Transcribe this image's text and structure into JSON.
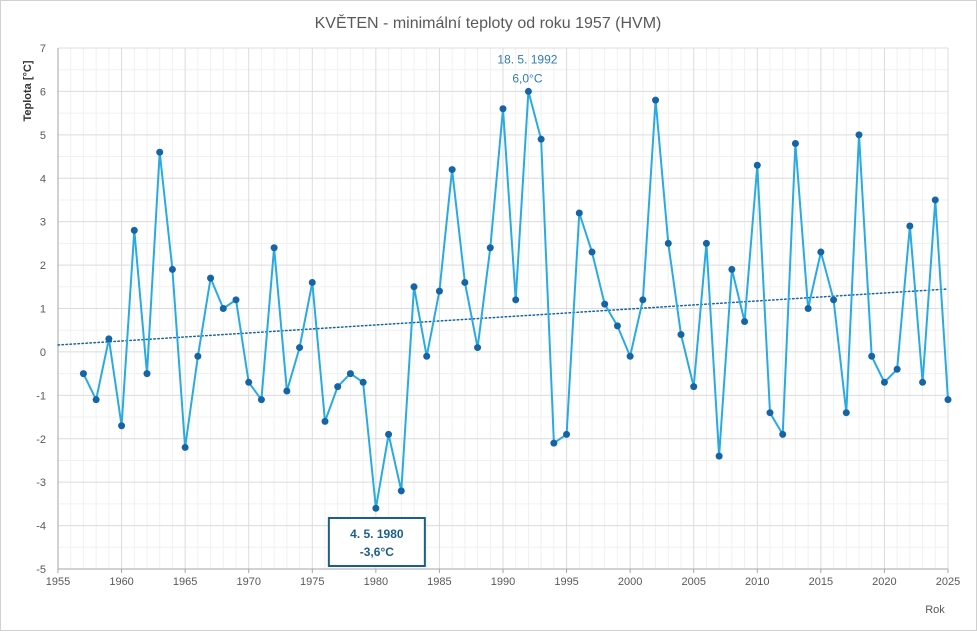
{
  "chart_data": {
    "type": "line",
    "title": "KVĚTEN - minimální teploty od roku 1957 (HVM)",
    "xlabel": "Rok",
    "ylabel": "Teplota [°C]",
    "xlim": [
      1955,
      2025
    ],
    "ylim": [
      -5,
      7
    ],
    "x_ticks": [
      "1955",
      "1960",
      "1965",
      "1970",
      "1975",
      "1980",
      "1985",
      "1990",
      "1995",
      "2000",
      "2005",
      "2010",
      "2015",
      "2020",
      "2025"
    ],
    "y_ticks": [
      "-5",
      "-4",
      "-3",
      "-2",
      "-1",
      "0",
      "1",
      "2",
      "3",
      "4",
      "5",
      "6",
      "7"
    ],
    "grid": true,
    "series": [
      {
        "color": "#29abe2",
        "marker_color": "#1565a6",
        "x": [
          1957,
          1958,
          1959,
          1960,
          1961,
          1962,
          1963,
          1964,
          1965,
          1966,
          1967,
          1968,
          1969,
          1970,
          1971,
          1972,
          1973,
          1974,
          1975,
          1976,
          1977,
          1978,
          1979,
          1980,
          1981,
          1982,
          1983,
          1984,
          1985,
          1986,
          1987,
          1988,
          1989,
          1990,
          1991,
          1992,
          1993,
          1994,
          1995,
          1996,
          1997,
          1998,
          1999,
          2000,
          2001,
          2002,
          2003,
          2004,
          2005,
          2006,
          2007,
          2008,
          2009,
          2010,
          2011,
          2012,
          2013,
          2014,
          2015,
          2016,
          2017,
          2018,
          2019,
          2020,
          2021,
          2022,
          2023,
          2024,
          2025
        ],
        "y": [
          -0.5,
          -1.1,
          0.3,
          -1.7,
          2.8,
          -0.5,
          4.6,
          1.9,
          -2.2,
          -0.1,
          1.7,
          1.0,
          1.2,
          -0.7,
          -1.1,
          2.4,
          -0.9,
          0.1,
          1.6,
          -1.6,
          -0.8,
          -0.5,
          -0.7,
          -3.6,
          -1.9,
          -3.2,
          1.5,
          -0.1,
          1.4,
          4.2,
          1.6,
          0.1,
          2.4,
          5.6,
          1.2,
          6.0,
          4.9,
          -2.1,
          -1.9,
          3.2,
          2.3,
          1.1,
          0.6,
          -0.1,
          1.2,
          5.8,
          2.5,
          0.4,
          -0.8,
          2.5,
          -2.4,
          1.9,
          0.7,
          4.3,
          -1.4,
          -1.9,
          4.8,
          1.0,
          2.3,
          1.2,
          -1.4,
          5.0,
          -0.1,
          -0.7,
          -0.4,
          2.9,
          -0.7,
          3.5,
          -1.1
        ]
      }
    ],
    "trendline": {
      "style": "dotted",
      "color": "#1565a6",
      "x": [
        1955,
        2025
      ],
      "y": [
        0.16,
        1.45
      ]
    },
    "annotations": [
      {
        "id": "max",
        "line1": "18. 5. 1992",
        "line2": "6,0°C",
        "color": "#2e7db5",
        "boxed": false,
        "x": 1992,
        "y": 6.0
      },
      {
        "id": "min",
        "line1": "4. 5. 1980",
        "line2": "-3,6°C",
        "color": "#1b5e8c",
        "boxed": true,
        "x": 1980,
        "y": -3.6
      }
    ]
  }
}
